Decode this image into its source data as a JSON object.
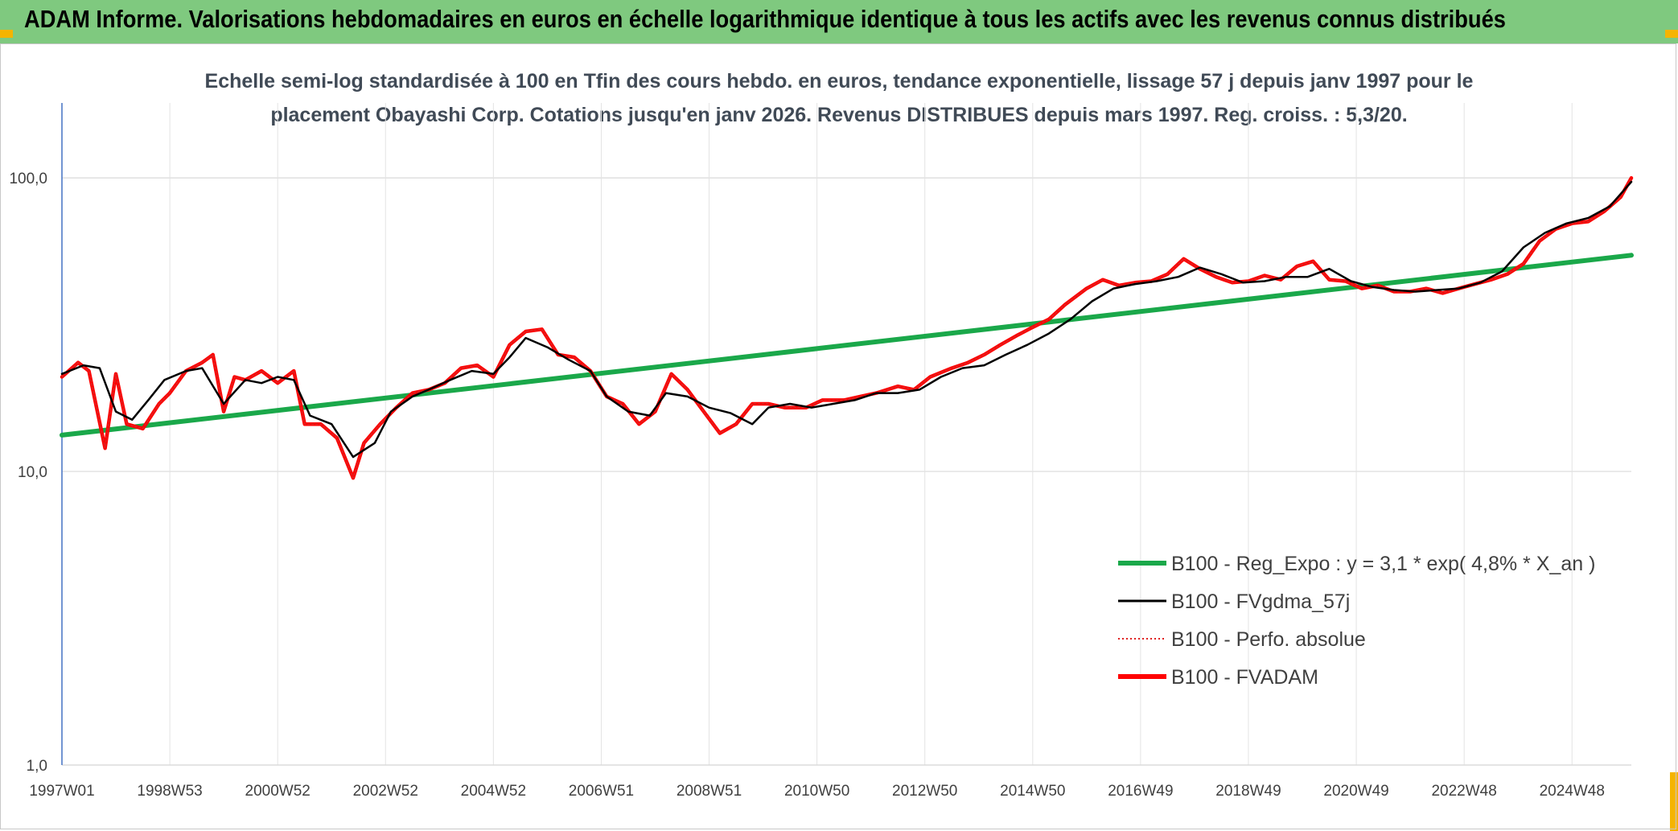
{
  "header": {
    "title": "ADAM Informe. Valorisations hebdomadaires en euros en échelle logarithmique identique à tous les actifs avec les revenus connus distribués"
  },
  "colors": {
    "header_bg": "#7fc97f",
    "corner_accent": "#f5b400",
    "reg_expo": "#1aa84a",
    "fvgdma": "#000000",
    "perfo": "#e02020",
    "fvadam": "#ff0000"
  },
  "chart_data": {
    "type": "line",
    "subtitle_line1": "Echelle semi-log standardisée à 100 en Tfin des cours hebdo. en euros, tendance exponentielle, lissage 57 j depuis janv 1997 pour le",
    "subtitle_line2": "placement Obayashi Corp. Cotations jusqu'en janv 2026. Revenus DISTRIBUES depuis mars 1997. Reg. croiss. : 5,3/20.",
    "y_scale": "log",
    "ylim": [
      1,
      180
    ],
    "y_ticks": [
      {
        "value": 1,
        "label": "1,0"
      },
      {
        "value": 10,
        "label": "10,0"
      },
      {
        "value": 100,
        "label": "100,0"
      }
    ],
    "x_unit": "year",
    "xlim": [
      1997.0,
      2026.1
    ],
    "x_ticks": [
      {
        "value": 1997.0,
        "label": "1997W01"
      },
      {
        "value": 1999.0,
        "label": "1998W53"
      },
      {
        "value": 2001.0,
        "label": "2000W52"
      },
      {
        "value": 2003.0,
        "label": "2002W52"
      },
      {
        "value": 2005.0,
        "label": "2004W52"
      },
      {
        "value": 2007.0,
        "label": "2006W51"
      },
      {
        "value": 2009.0,
        "label": "2008W51"
      },
      {
        "value": 2011.0,
        "label": "2010W50"
      },
      {
        "value": 2013.0,
        "label": "2012W50"
      },
      {
        "value": 2015.0,
        "label": "2014W50"
      },
      {
        "value": 2017.0,
        "label": "2016W49"
      },
      {
        "value": 2019.0,
        "label": "2018W49"
      },
      {
        "value": 2021.0,
        "label": "2020W49"
      },
      {
        "value": 2023.0,
        "label": "2022W48"
      },
      {
        "value": 2025.0,
        "label": "2024W48"
      }
    ],
    "grid": true,
    "legend_position": "bottom-right",
    "series": [
      {
        "name": "B100 - Reg_Expo : y = 3,1 * exp( 4,8% *  X_an )",
        "style": "thick-solid",
        "x": [
          1997.0,
          2026.1
        ],
        "y": [
          13.3,
          54.5
        ]
      },
      {
        "name": "B100 - FVgdma_57j",
        "style": "thin-solid",
        "x": [
          1997.0,
          1997.4,
          1997.7,
          1998.0,
          1998.3,
          1998.6,
          1998.9,
          1999.3,
          1999.6,
          2000.0,
          2000.4,
          2000.7,
          2001.0,
          2001.3,
          2001.6,
          2002.0,
          2002.4,
          2002.8,
          2003.1,
          2003.5,
          2003.8,
          2004.2,
          2004.6,
          2005.0,
          2005.3,
          2005.6,
          2006.0,
          2006.4,
          2006.8,
          2007.1,
          2007.5,
          2007.9,
          2008.2,
          2008.6,
          2009.0,
          2009.4,
          2009.8,
          2010.1,
          2010.5,
          2010.9,
          2011.3,
          2011.7,
          2012.1,
          2012.5,
          2012.9,
          2013.3,
          2013.7,
          2014.1,
          2014.5,
          2014.9,
          2015.3,
          2015.7,
          2016.1,
          2016.5,
          2016.9,
          2017.3,
          2017.7,
          2018.1,
          2018.5,
          2018.9,
          2019.3,
          2019.7,
          2020.1,
          2020.5,
          2020.9,
          2021.3,
          2021.7,
          2022.1,
          2022.5,
          2022.9,
          2023.3,
          2023.7,
          2024.1,
          2024.5,
          2024.9,
          2025.3,
          2025.7,
          2026.1
        ],
        "y": [
          21.5,
          23,
          22.5,
          16,
          15,
          17.5,
          20.5,
          22,
          22.5,
          17,
          20.5,
          20,
          21,
          20.5,
          15.5,
          14.5,
          11.2,
          12.5,
          16,
          18,
          19,
          20.5,
          22,
          21.5,
          24.5,
          28.5,
          26.5,
          24,
          22,
          18,
          16,
          15.5,
          18.5,
          18,
          16.5,
          15.8,
          14.5,
          16.5,
          17,
          16.5,
          17,
          17.5,
          18.5,
          18.5,
          19,
          21,
          22.5,
          23,
          25,
          27,
          29.5,
          33,
          38,
          42,
          43.5,
          44.5,
          46,
          49.5,
          47,
          44,
          44.5,
          46,
          46,
          49,
          44.5,
          42.5,
          41.5,
          41,
          41.5,
          42,
          44,
          48,
          58,
          65,
          70,
          73,
          80,
          97
        ]
      },
      {
        "name": "B100 - Perfo. absolue",
        "style": "dotted",
        "x": [
          1997.0,
          1997.3,
          1997.5,
          1997.8,
          1998.0,
          1998.2,
          1998.5,
          1998.8,
          1999.0,
          1999.3,
          1999.6,
          1999.8,
          2000.0,
          2000.2,
          2000.4,
          2000.7,
          2001.0,
          2001.3,
          2001.5,
          2001.8,
          2002.1,
          2002.4,
          2002.6,
          2002.9,
          2003.2,
          2003.5,
          2003.8,
          2004.1,
          2004.4,
          2004.7,
          2005.0,
          2005.3,
          2005.6,
          2005.9,
          2006.2,
          2006.5,
          2006.8,
          2007.1,
          2007.4,
          2007.7,
          2008.0,
          2008.3,
          2008.6,
          2008.9,
          2009.2,
          2009.5,
          2009.8,
          2010.1,
          2010.4,
          2010.8,
          2011.1,
          2011.5,
          2011.8,
          2012.1,
          2012.5,
          2012.8,
          2013.1,
          2013.5,
          2013.8,
          2014.1,
          2014.4,
          2014.7,
          2015.0,
          2015.3,
          2015.6,
          2016.0,
          2016.3,
          2016.6,
          2016.9,
          2017.2,
          2017.5,
          2017.8,
          2018.1,
          2018.4,
          2018.7,
          2019.0,
          2019.3,
          2019.6,
          2019.9,
          2020.2,
          2020.5,
          2020.8,
          2021.1,
          2021.4,
          2021.7,
          2022.0,
          2022.3,
          2022.6,
          2022.9,
          2023.2,
          2023.5,
          2023.8,
          2024.1,
          2024.4,
          2024.7,
          2025.0,
          2025.3,
          2025.6,
          2025.9,
          2026.1
        ],
        "y": [
          21,
          23.5,
          22,
          12,
          21.5,
          14.5,
          14,
          17,
          18.5,
          22,
          23.5,
          25,
          16,
          21,
          20.5,
          22,
          20,
          22,
          14.5,
          14.5,
          13,
          9.5,
          12.5,
          14.5,
          16.5,
          18.5,
          19,
          20,
          22.5,
          23,
          21,
          27,
          30,
          30.5,
          25,
          24.5,
          22,
          18,
          17,
          14.5,
          16,
          21.5,
          19,
          16,
          13.5,
          14.5,
          17,
          17,
          16.5,
          16.5,
          17.5,
          17.5,
          18,
          18.5,
          19.5,
          19,
          21,
          22.5,
          23.5,
          25,
          27,
          29,
          31,
          33,
          37,
          42,
          45,
          43,
          44,
          44.5,
          47,
          53,
          49,
          46,
          44,
          44.5,
          46.5,
          45,
          50,
          52,
          45,
          44.5,
          42,
          43,
          41,
          41,
          42,
          40.5,
          42,
          43.5,
          45,
          47,
          51,
          61,
          67,
          70,
          71,
          77,
          86,
          100
        ]
      },
      {
        "name": "B100 - FVADAM",
        "style": "thick-solid",
        "x": [
          1997.0,
          1997.3,
          1997.5,
          1997.8,
          1998.0,
          1998.2,
          1998.5,
          1998.8,
          1999.0,
          1999.3,
          1999.6,
          1999.8,
          2000.0,
          2000.2,
          2000.4,
          2000.7,
          2001.0,
          2001.3,
          2001.5,
          2001.8,
          2002.1,
          2002.4,
          2002.6,
          2002.9,
          2003.2,
          2003.5,
          2003.8,
          2004.1,
          2004.4,
          2004.7,
          2005.0,
          2005.3,
          2005.6,
          2005.9,
          2006.2,
          2006.5,
          2006.8,
          2007.1,
          2007.4,
          2007.7,
          2008.0,
          2008.3,
          2008.6,
          2008.9,
          2009.2,
          2009.5,
          2009.8,
          2010.1,
          2010.4,
          2010.8,
          2011.1,
          2011.5,
          2011.8,
          2012.1,
          2012.5,
          2012.8,
          2013.1,
          2013.5,
          2013.8,
          2014.1,
          2014.4,
          2014.7,
          2015.0,
          2015.3,
          2015.6,
          2016.0,
          2016.3,
          2016.6,
          2016.9,
          2017.2,
          2017.5,
          2017.8,
          2018.1,
          2018.4,
          2018.7,
          2019.0,
          2019.3,
          2019.6,
          2019.9,
          2020.2,
          2020.5,
          2020.8,
          2021.1,
          2021.4,
          2021.7,
          2022.0,
          2022.3,
          2022.6,
          2022.9,
          2023.2,
          2023.5,
          2023.8,
          2024.1,
          2024.4,
          2024.7,
          2025.0,
          2025.3,
          2025.6,
          2025.9,
          2026.1
        ],
        "y": [
          21,
          23.5,
          22,
          12,
          21.5,
          14.5,
          14,
          17,
          18.5,
          22,
          23.5,
          25,
          16,
          21,
          20.5,
          22,
          20,
          22,
          14.5,
          14.5,
          13,
          9.5,
          12.5,
          14.5,
          16.5,
          18.5,
          19,
          20,
          22.5,
          23,
          21,
          27,
          30,
          30.5,
          25,
          24.5,
          22,
          18,
          17,
          14.5,
          16,
          21.5,
          19,
          16,
          13.5,
          14.5,
          17,
          17,
          16.5,
          16.5,
          17.5,
          17.5,
          18,
          18.5,
          19.5,
          19,
          21,
          22.5,
          23.5,
          25,
          27,
          29,
          31,
          33,
          37,
          42,
          45,
          43,
          44,
          44.5,
          47,
          53,
          49,
          46,
          44,
          44.5,
          46.5,
          45,
          50,
          52,
          45,
          44.5,
          42,
          43,
          41,
          41,
          42,
          40.5,
          42,
          43.5,
          45,
          47,
          51,
          61,
          67,
          70,
          71,
          77,
          86,
          100
        ]
      }
    ]
  }
}
